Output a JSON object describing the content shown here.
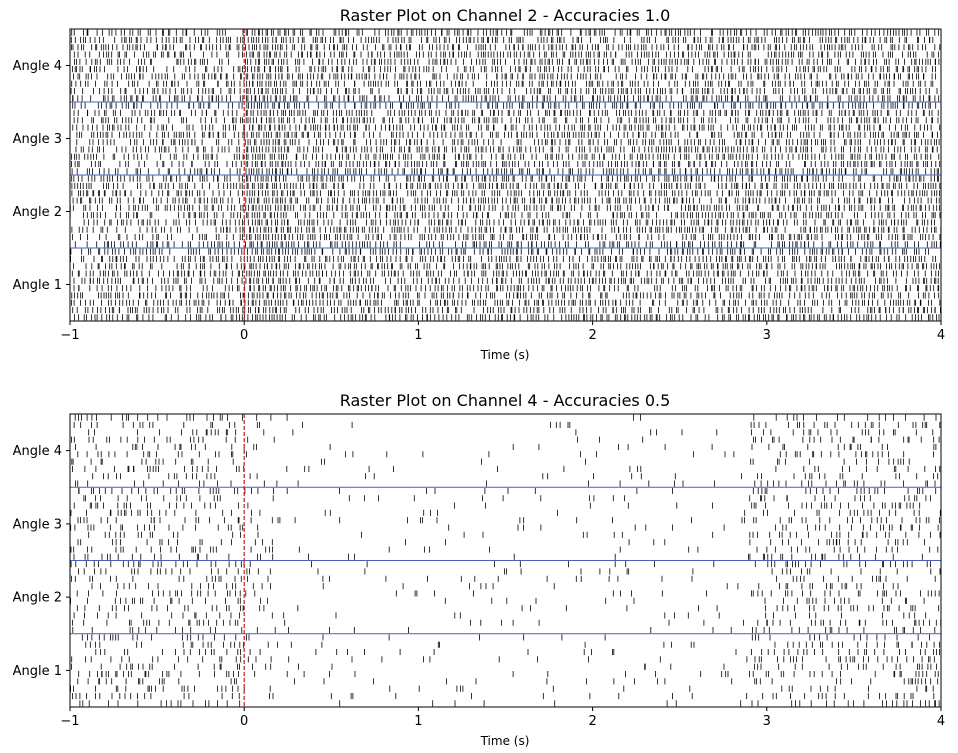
{
  "chart_data": [
    {
      "type": "raster",
      "title": "Raster Plot on Channel 2 - Accuracies 1.0",
      "xlabel": "Time (s)",
      "ylabel": "",
      "xlim": [
        -1,
        4
      ],
      "xticks": [
        -1,
        0,
        1,
        2,
        3,
        4
      ],
      "xtick_labels": [
        "−1",
        "0",
        "1",
        "2",
        "3",
        "4"
      ],
      "groups": [
        "Angle 1",
        "Angle 2",
        "Angle 3",
        "Angle 4"
      ],
      "trials_per_group": 10,
      "stimulus_onset": 0,
      "overall_spike_density": 0.8,
      "spike_color": "#000000",
      "separator_color": "#4a5fc1",
      "onset_color": "#d62728",
      "spike_rate_profile": [
        {
          "from": -1,
          "to": 0,
          "density": 0.65
        },
        {
          "from": 0,
          "to": 0.25,
          "density": 1.0
        },
        {
          "from": 0.25,
          "to": 4,
          "density": 0.75
        }
      ]
    },
    {
      "type": "raster",
      "title": "Raster Plot on Channel 4 - Accuracies 0.5",
      "xlabel": "Time (s)",
      "ylabel": "",
      "xlim": [
        -1,
        4
      ],
      "xticks": [
        -1,
        0,
        1,
        2,
        3,
        4
      ],
      "xtick_labels": [
        "−1",
        "0",
        "1",
        "2",
        "3",
        "4"
      ],
      "groups": [
        "Angle 1",
        "Angle 2",
        "Angle 3",
        "Angle 4"
      ],
      "trials_per_group": 10,
      "stimulus_onset": 0,
      "overall_spike_density": 0.12,
      "spike_color": "#000000",
      "separator_color": "#4a5fc1",
      "onset_color": "#d62728",
      "spike_rate_profile": [
        {
          "from": -1,
          "to": 0,
          "density": 0.3
        },
        {
          "from": 0,
          "to": 0.2,
          "density": 0.15
        },
        {
          "from": 0.2,
          "to": 2.9,
          "density": 0.05
        },
        {
          "from": 2.9,
          "to": 4,
          "density": 0.3
        }
      ]
    }
  ]
}
